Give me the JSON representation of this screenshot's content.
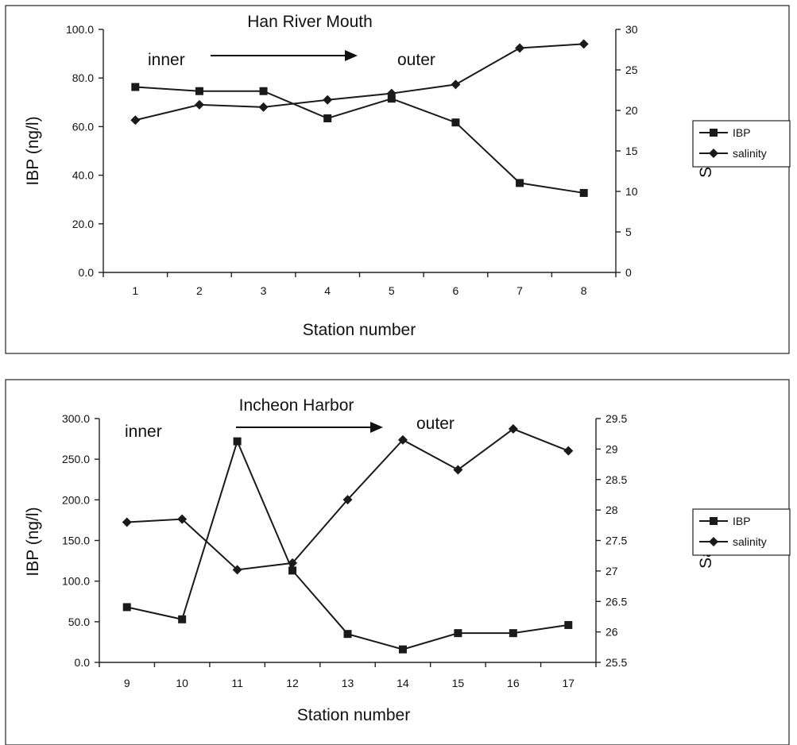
{
  "chart_data": [
    {
      "type": "line",
      "title": "Han River Mouth",
      "annotations": [
        "inner",
        "outer"
      ],
      "xlabel": "Station number",
      "ylabel": "IBP (ng/l)",
      "y2label": "Salinity",
      "categories": [
        "1",
        "2",
        "3",
        "4",
        "5",
        "6",
        "7",
        "8"
      ],
      "ylim": [
        0,
        100
      ],
      "y_ticks": [
        "0.0",
        "20.0",
        "40.0",
        "60.0",
        "80.0",
        "100.0"
      ],
      "y2lim": [
        0,
        30
      ],
      "y2_ticks": [
        "0",
        "5",
        "10",
        "15",
        "20",
        "25",
        "30"
      ],
      "series": [
        {
          "name": "IBP",
          "axis": "left",
          "marker": "square",
          "values": [
            76.3,
            74.6,
            74.6,
            63.4,
            71.5,
            61.7,
            36.8,
            32.7
          ]
        },
        {
          "name": "salinity",
          "axis": "right",
          "marker": "diamond",
          "values": [
            18.8,
            20.7,
            20.4,
            21.3,
            22.1,
            23.2,
            27.7,
            28.2
          ]
        }
      ],
      "legend": "right"
    },
    {
      "type": "line",
      "title": "Incheon Harbor",
      "annotations": [
        "inner",
        "outer"
      ],
      "xlabel": "Station number",
      "ylabel": "IBP (ng/l)",
      "y2label": "Salinity",
      "categories": [
        "9",
        "10",
        "11",
        "12",
        "13",
        "14",
        "15",
        "16",
        "17"
      ],
      "ylim": [
        0,
        300
      ],
      "y_ticks": [
        "0.0",
        "50.0",
        "100.0",
        "150.0",
        "200.0",
        "250.0",
        "300.0"
      ],
      "y2lim": [
        25.5,
        29.5
      ],
      "y2_ticks": [
        "25.5",
        "26",
        "26.5",
        "27",
        "27.5",
        "28",
        "28.5",
        "29",
        "29.5"
      ],
      "series": [
        {
          "name": "IBP",
          "axis": "left",
          "marker": "square",
          "values": [
            68,
            53,
            272,
            113,
            35,
            16,
            36,
            36,
            46
          ]
        },
        {
          "name": "salinity",
          "axis": "right",
          "marker": "diamond",
          "values": [
            27.8,
            27.85,
            27.02,
            27.13,
            28.17,
            29.15,
            28.66,
            29.33,
            28.97
          ]
        }
      ],
      "legend": "right"
    }
  ]
}
